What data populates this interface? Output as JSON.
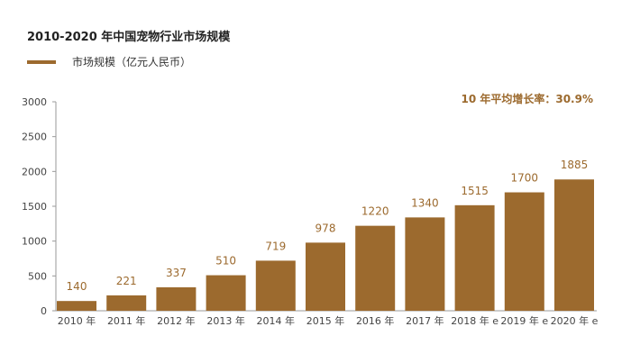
{
  "chart_data": {
    "type": "bar",
    "title": "2010-2020 年中国宠物行业市场规模",
    "categories": [
      "2010 年",
      "2011 年",
      "2012 年",
      "2013 年",
      "2014 年",
      "2015 年",
      "2016 年",
      "2017 年",
      "2018 年 e",
      "2019 年 e",
      "2020 年 e"
    ],
    "series": [
      {
        "name": "市场规模（亿元人民币）",
        "values": [
          140,
          221,
          337,
          510,
          719,
          978,
          1220,
          1340,
          1515,
          1700,
          1885
        ],
        "color": "#9c6a2e"
      }
    ],
    "data_labels": [
      "140",
      "221",
      "337",
      "510",
      "719",
      "978",
      "1220",
      "1340",
      "1515",
      "1700",
      "1885"
    ],
    "yticks": [
      "0",
      "500",
      "1000",
      "1500",
      "2000",
      "2500",
      "3000"
    ],
    "ylim": [
      0,
      3000
    ],
    "annotation": "10 年平均增长率：30.9%",
    "legend_position": "top-left",
    "grid": false
  }
}
